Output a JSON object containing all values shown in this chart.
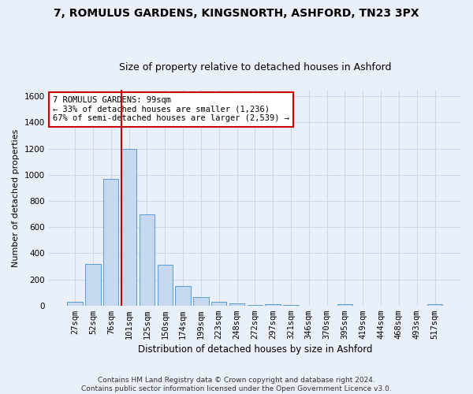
{
  "title": "7, ROMULUS GARDENS, KINGSNORTH, ASHFORD, TN23 3PX",
  "subtitle": "Size of property relative to detached houses in Ashford",
  "xlabel": "Distribution of detached houses by size in Ashford",
  "ylabel": "Number of detached properties",
  "categories": [
    "27sqm",
    "52sqm",
    "76sqm",
    "101sqm",
    "125sqm",
    "150sqm",
    "174sqm",
    "199sqm",
    "223sqm",
    "248sqm",
    "272sqm",
    "297sqm",
    "321sqm",
    "346sqm",
    "370sqm",
    "395sqm",
    "419sqm",
    "444sqm",
    "468sqm",
    "493sqm",
    "517sqm"
  ],
  "values": [
    30,
    320,
    970,
    1200,
    700,
    310,
    150,
    65,
    30,
    15,
    5,
    12,
    2,
    0,
    0,
    10,
    0,
    0,
    0,
    0,
    10
  ],
  "bar_color": "#c5d8f0",
  "bar_edge_color": "#5b9bd5",
  "grid_color": "#d0d8e8",
  "background_color": "#eaf0f9",
  "vline_index": 3,
  "vline_color": "#cc0000",
  "annotation_text": "7 ROMULUS GARDENS: 99sqm\n← 33% of detached houses are smaller (1,236)\n67% of semi-detached houses are larger (2,539) →",
  "annotation_box_color": "#ffffff",
  "annotation_box_edge": "#cc0000",
  "footer": "Contains HM Land Registry data © Crown copyright and database right 2024.\nContains public sector information licensed under the Open Government Licence v3.0.",
  "ylim": [
    0,
    1650
  ],
  "yticks": [
    0,
    200,
    400,
    600,
    800,
    1000,
    1200,
    1400,
    1600
  ],
  "title_fontsize": 10,
  "subtitle_fontsize": 9,
  "ylabel_fontsize": 8,
  "xlabel_fontsize": 8.5,
  "tick_fontsize": 7.5,
  "annotation_fontsize": 7.5,
  "footer_fontsize": 6.5
}
